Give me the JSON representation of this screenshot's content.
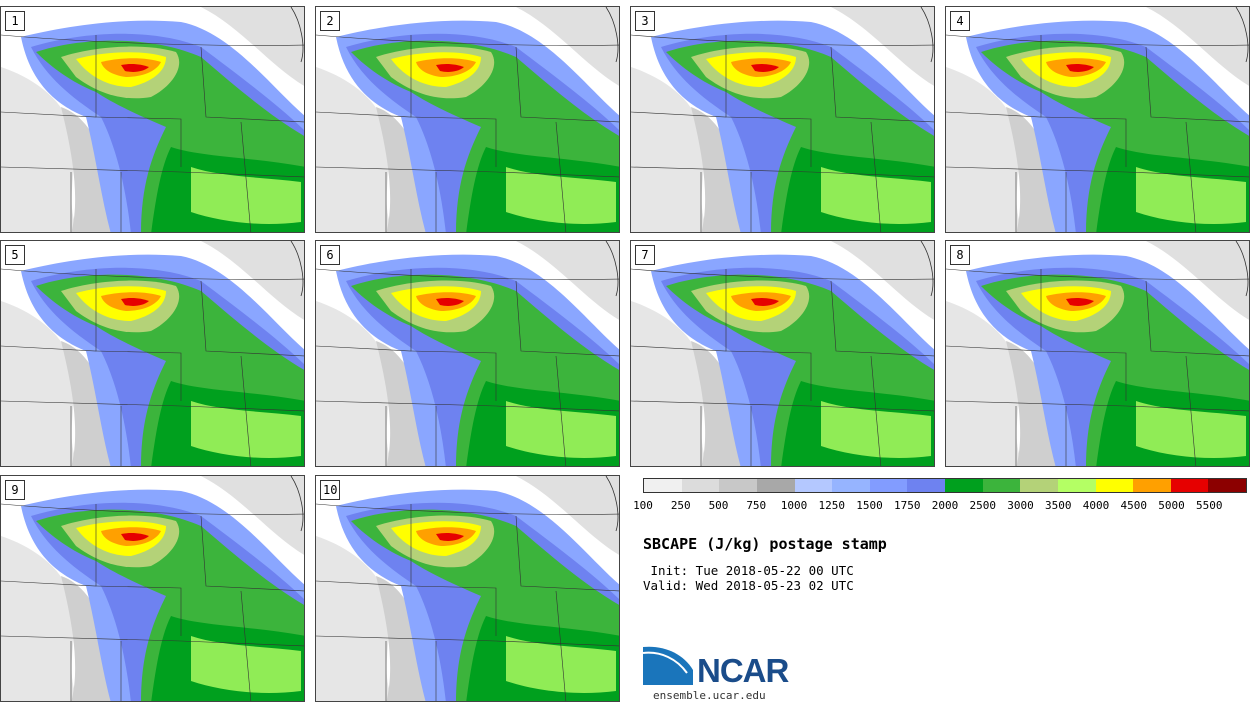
{
  "panels": [
    {
      "label": "1"
    },
    {
      "label": "2"
    },
    {
      "label": "3"
    },
    {
      "label": "4"
    },
    {
      "label": "5"
    },
    {
      "label": "6"
    },
    {
      "label": "7"
    },
    {
      "label": "8"
    },
    {
      "label": "9"
    },
    {
      "label": "10"
    }
  ],
  "colorbar": {
    "colors": [
      "#f0f0f0",
      "#dcdcdc",
      "#c8c8c8",
      "#a8a8a8",
      "#b4c8ff",
      "#96b4ff",
      "#829cff",
      "#6e82f0",
      "#00a01e",
      "#3cb43c",
      "#b4d278",
      "#b4ff64",
      "#ffff00",
      "#ffa000",
      "#e60000",
      "#8c0000"
    ],
    "ticks": [
      "100",
      "250",
      "500",
      "750",
      "1000",
      "1250",
      "1500",
      "1750",
      "2000",
      "2500",
      "3000",
      "3500",
      "4000",
      "4500",
      "5000",
      "5500"
    ]
  },
  "title": "SBCAPE (J/kg) postage stamp",
  "init": " Init: Tue 2018-05-22 00 UTC",
  "valid": "Valid: Wed 2018-05-23 02 UTC",
  "logo": {
    "text": "NCAR",
    "site": "ensemble.ucar.edu"
  }
}
